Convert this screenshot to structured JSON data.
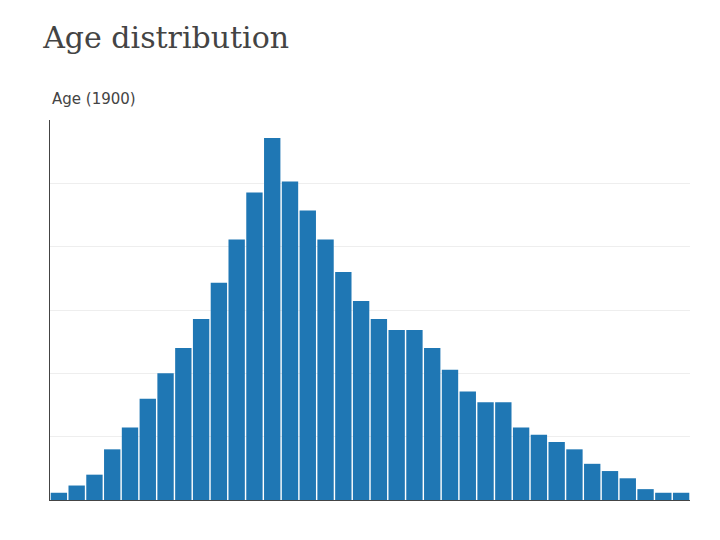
{
  "chart_data": {
    "type": "bar",
    "title": "Age distribution",
    "subtitle": "Age (1900)",
    "categories": [
      null,
      null,
      null,
      null,
      null,
      null,
      null,
      null,
      null,
      null,
      null,
      null,
      null,
      null,
      null,
      null,
      null,
      null,
      null,
      null,
      null,
      null,
      null,
      null,
      null,
      null,
      null,
      null,
      null,
      null,
      null,
      null,
      null,
      null,
      null,
      null
    ],
    "values": [
      2,
      4,
      7,
      14,
      20,
      28,
      35,
      42,
      50,
      60,
      72,
      85,
      100,
      88,
      80,
      72,
      63,
      55,
      50,
      47,
      47,
      42,
      36,
      30,
      27,
      27,
      20,
      18,
      16,
      14,
      10,
      8,
      6,
      3,
      2,
      2
    ],
    "ylim": [
      0,
      105
    ],
    "yticks": [
      0,
      17.5,
      35,
      52.5,
      70,
      87.5,
      105
    ],
    "grid": true,
    "tick_labels": false
  }
}
